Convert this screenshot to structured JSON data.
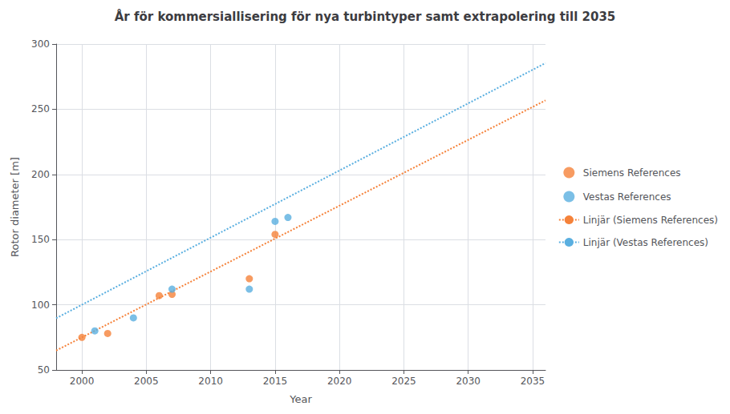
{
  "chart_data": {
    "type": "scatter",
    "title": "År för kommersiallisering för nya turbintyper samt extrapolering till 2035",
    "x_label": "Year",
    "y_label": "Rotor diameter [m]",
    "xlim": [
      1998,
      2036
    ],
    "ylim": [
      50,
      300
    ],
    "xticks": [
      2000,
      2005,
      2010,
      2015,
      2020,
      2025,
      2030,
      2035
    ],
    "yticks": [
      50,
      100,
      150,
      200,
      250,
      300
    ],
    "grid": true,
    "legend": "right",
    "series": [
      {
        "name": "Siemens References",
        "type": "scatter",
        "marker": "circle",
        "color": "#f5823a",
        "x": [
          2000,
          2002,
          2006,
          2007,
          2013,
          2015
        ],
        "values": [
          75,
          78,
          107,
          108,
          120,
          154
        ]
      },
      {
        "name": "Vestas References",
        "type": "scatter",
        "marker": "circle",
        "color": "#5aafe0",
        "x": [
          2001,
          2004,
          2007,
          2013,
          2015,
          2016
        ],
        "values": [
          80,
          90,
          112,
          112,
          164,
          167
        ]
      },
      {
        "name": "Linjär (Siemens References)",
        "type": "line",
        "line_style": "dotted",
        "color": "#f5823a",
        "x": [
          1998,
          2036
        ],
        "values": [
          64.9,
          256.8
        ]
      },
      {
        "name": "Linjär (Vestas References)",
        "type": "line",
        "line_style": "dotted",
        "color": "#5aafe0",
        "x": [
          1998,
          2036
        ],
        "values": [
          89.7,
          285.4
        ]
      }
    ]
  }
}
